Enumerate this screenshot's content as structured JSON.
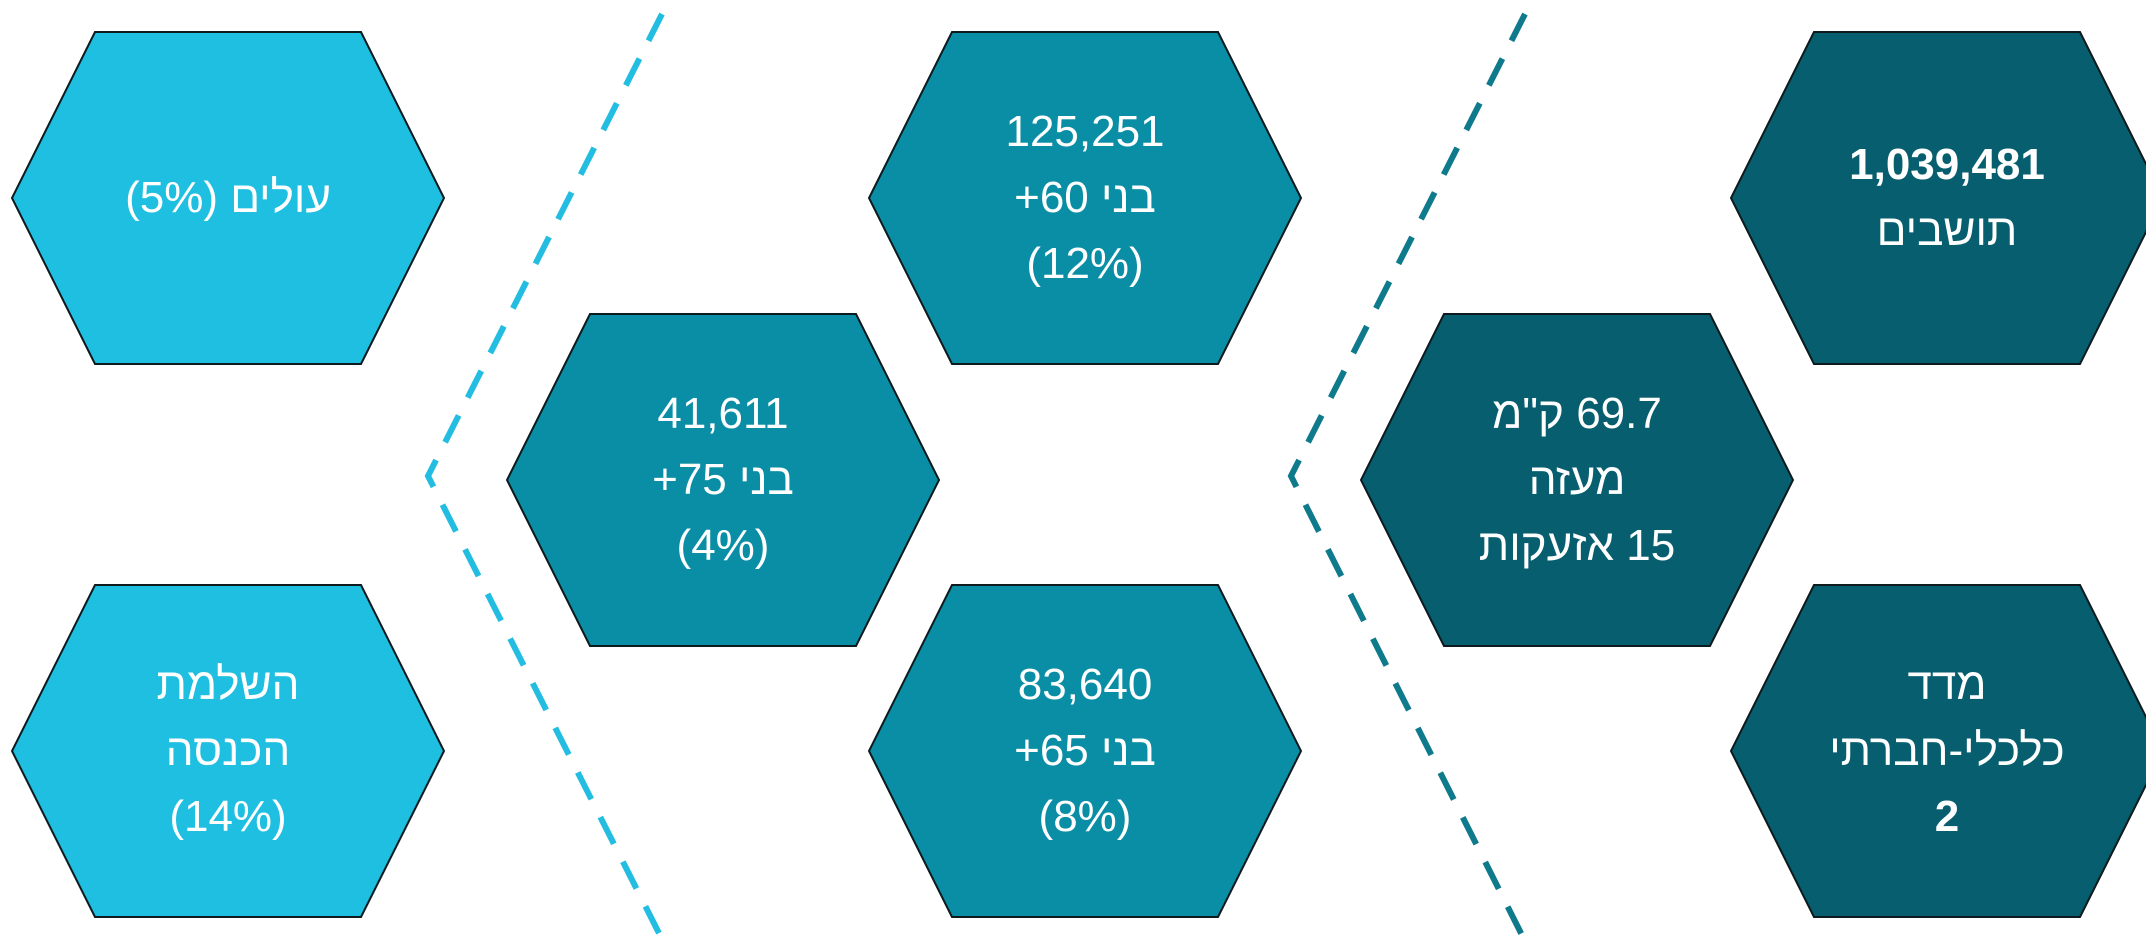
{
  "colors": {
    "dark_teal": "#065e6e",
    "mid_teal": "#0a8ea5",
    "light_cyan": "#1ebfe0",
    "outline": "#0d1a1e",
    "dash_dark": "#0e7a8c",
    "dash_light": "#22bde0"
  },
  "hexes": {
    "residents": {
      "number": "1,039,481",
      "label": "תושבים"
    },
    "area": {
      "line1": "69.7 ק\"מ",
      "line2": "מעזה",
      "line3": "15 אזעקות"
    },
    "socioeconomic": {
      "line1": "מדד",
      "line2": "כלכלי-חברתי",
      "value": "2"
    },
    "age60": {
      "number": "125,251",
      "label": "בני 60+",
      "percent": "(12%)"
    },
    "age75": {
      "number": "41,611",
      "label": "בני 75+",
      "percent": "(4%)"
    },
    "age65": {
      "number": "83,640",
      "label": "בני 65+",
      "percent": "(8%)"
    },
    "immigrants": {
      "label": "עולים (5%)"
    },
    "income_support": {
      "line1": "השלמת",
      "line2": "הכנסה",
      "percent": "(14%)"
    }
  }
}
